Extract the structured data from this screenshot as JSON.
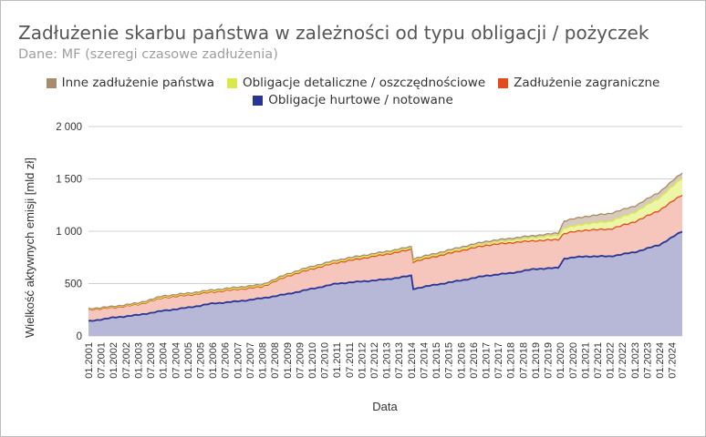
{
  "title": "Zadłużenie skarbu państwa w zależności od typu obligacji / pożyczek",
  "subtitle": "Dane: MF (szeregi czasowe zadłużenia)",
  "colors": {
    "hurtowe": "#283593",
    "hurtowe_fill": "#b7b7d8",
    "zagraniczne": "#e64a19",
    "zagraniczne_fill": "#f6c5bb",
    "detaliczne": "#d9e94a",
    "detaliczne_fill": "#edf5a6",
    "inne": "#a88b6c",
    "inne_fill": "#d9cbbb",
    "grid": "#d0d0d0"
  },
  "legend": {
    "row1": [
      {
        "label": "Inne zadłużenie państwa",
        "color_key": "inne"
      },
      {
        "label": "Obligacje detaliczne / oszczędnościowe",
        "color_key": "detaliczne"
      },
      {
        "label": "Zadłużenie zagraniczne",
        "color_key": "zagraniczne"
      }
    ],
    "row2": [
      {
        "label": "Obligacje hurtowe / notowane",
        "color_key": "hurtowe"
      }
    ]
  },
  "chart_data": {
    "type": "area",
    "stacked": true,
    "title": "Zadłużenie skarbu państwa w zależności od typu obligacji / pożyczek",
    "subtitle": "Dane: MF (szeregi czasowe zadłużenia)",
    "xlabel": "Data",
    "ylabel": "Wielkość aktywnych emisji [mld zł]",
    "ylim": [
      0,
      2000
    ],
    "yticks": [
      0,
      500,
      1000,
      1500,
      2000
    ],
    "ytick_labels": [
      "0",
      "500",
      "1 000",
      "1 500",
      "2 000"
    ],
    "x_range": [
      "2001-01",
      "2024-12"
    ],
    "xtick_labels": [
      "01.2001",
      "07.2001",
      "01.2002",
      "07.2002",
      "01.2003",
      "07.2003",
      "01.2004",
      "07.2004",
      "01.2005",
      "07.2005",
      "01.2006",
      "07.2006",
      "01.2007",
      "07.2007",
      "01.2008",
      "07.2008",
      "01.2009",
      "07.2009",
      "01.2010",
      "07.2010",
      "01.2011",
      "07.2011",
      "01.2012",
      "07.2012",
      "01.2013",
      "07.2013",
      "01.2014",
      "07.2014",
      "01.2015",
      "07.2015",
      "01.2016",
      "07.2016",
      "01.2017",
      "07.2017",
      "01.2018",
      "07.2018",
      "01.2019",
      "07.2019",
      "01.2020",
      "07.2020",
      "01.2021",
      "07.2021",
      "01.2022",
      "07.2022",
      "01.2023",
      "07.2023",
      "01.2024",
      "07.2024"
    ],
    "grid": true,
    "legend_position": "top",
    "series": [
      {
        "name": "Obligacje hurtowe / notowane",
        "x": [
          "2001-01",
          "2002-01",
          "2003-01",
          "2004-01",
          "2005-01",
          "2006-01",
          "2007-01",
          "2008-01",
          "2009-01",
          "2010-01",
          "2011-01",
          "2012-01",
          "2013-01",
          "2014-01",
          "2014-02",
          "2015-01",
          "2016-01",
          "2017-01",
          "2018-01",
          "2019-01",
          "2019-12",
          "2020-03",
          "2021-01",
          "2022-01",
          "2023-01",
          "2024-01",
          "2024-12"
        ],
        "values": [
          140,
          175,
          200,
          240,
          270,
          310,
          330,
          360,
          400,
          450,
          500,
          520,
          540,
          575,
          450,
          490,
          530,
          575,
          600,
          640,
          650,
          740,
          760,
          760,
          800,
          870,
          1000
        ]
      },
      {
        "name": "Zadłużenie zagraniczne",
        "x": [
          "2001-01",
          "2002-01",
          "2003-01",
          "2004-01",
          "2005-01",
          "2006-01",
          "2007-01",
          "2008-01",
          "2009-01",
          "2010-01",
          "2011-01",
          "2012-01",
          "2013-01",
          "2014-01",
          "2014-02",
          "2015-01",
          "2016-01",
          "2017-01",
          "2018-01",
          "2019-01",
          "2019-12",
          "2020-03",
          "2021-01",
          "2022-01",
          "2023-01",
          "2024-01",
          "2024-12"
        ],
        "values": [
          110,
          95,
          100,
          125,
          120,
          110,
          115,
          110,
          170,
          190,
          200,
          220,
          240,
          250,
          260,
          270,
          285,
          290,
          290,
          270,
          270,
          240,
          250,
          260,
          290,
          330,
          350
        ]
      },
      {
        "name": "Obligacje detaliczne / oszczędnościowe",
        "x": [
          "2001-01",
          "2002-01",
          "2003-01",
          "2004-01",
          "2005-01",
          "2006-01",
          "2007-01",
          "2008-01",
          "2009-01",
          "2010-01",
          "2011-01",
          "2012-01",
          "2013-01",
          "2014-01",
          "2014-02",
          "2015-01",
          "2016-01",
          "2017-01",
          "2018-01",
          "2019-01",
          "2019-12",
          "2020-03",
          "2021-01",
          "2022-01",
          "2023-01",
          "2024-01",
          "2024-12"
        ],
        "values": [
          5,
          6,
          6,
          7,
          8,
          8,
          8,
          9,
          10,
          10,
          10,
          12,
          12,
          13,
          13,
          14,
          16,
          18,
          22,
          30,
          40,
          50,
          60,
          75,
          90,
          120,
          160
        ]
      },
      {
        "name": "Inne zadłużenie państwa",
        "x": [
          "2001-01",
          "2002-01",
          "2003-01",
          "2004-01",
          "2005-01",
          "2006-01",
          "2007-01",
          "2008-01",
          "2009-01",
          "2010-01",
          "2011-01",
          "2012-01",
          "2013-01",
          "2014-01",
          "2014-02",
          "2015-01",
          "2016-01",
          "2017-01",
          "2018-01",
          "2019-01",
          "2019-12",
          "2020-03",
          "2021-01",
          "2022-01",
          "2023-01",
          "2024-01",
          "2024-12"
        ],
        "values": [
          5,
          6,
          8,
          10,
          10,
          12,
          12,
          12,
          12,
          15,
          15,
          15,
          15,
          15,
          15,
          15,
          18,
          20,
          20,
          20,
          22,
          70,
          70,
          75,
          60,
          55,
          50
        ]
      }
    ]
  }
}
